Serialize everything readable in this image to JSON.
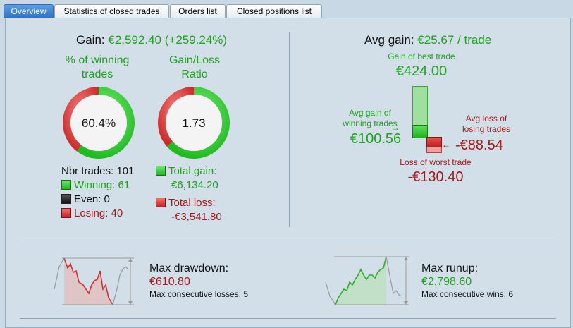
{
  "tabs": [
    "Overview",
    "Statistics of closed trades",
    "Orders list",
    "Closed positions list"
  ],
  "gain": {
    "label": "Gain:",
    "value": "€2,592.40 (+259.24%)"
  },
  "winning_pct": {
    "title_line1": "% of winning",
    "title_line2": "trades",
    "value": "60.4%",
    "fraction": 0.604
  },
  "gain_loss_ratio": {
    "title_line1": "Gain/Loss",
    "title_line2": "Ratio",
    "value": "1.73",
    "fraction": 0.634
  },
  "trades": {
    "count_label": "Nbr trades: 101",
    "winning": "Winning: 61",
    "even": "Even: 0",
    "losing": "Losing: 40"
  },
  "totals": {
    "gain_label": "Total gain:",
    "gain_value": "€6,134.20",
    "loss_label": "Total loss:",
    "loss_value": "-€3,541.80"
  },
  "avg": {
    "label": "Avg gain:",
    "value": "€25.67 / trade",
    "best_label": "Gain of best trade",
    "best_value": "€424.00",
    "avg_win_label_1": "Avg gain of",
    "avg_win_label_2": "winning trades",
    "avg_win_value": "€100.56",
    "avg_loss_label_1": "Avg loss of",
    "avg_loss_label_2": "losing trades",
    "avg_loss_value": "-€88.54",
    "worst_label": "Loss of worst trade",
    "worst_value": "-€130.40"
  },
  "drawdown": {
    "title": "Max drawdown:",
    "value": "€610.80",
    "sub": "Max consecutive losses: 5"
  },
  "runup": {
    "title": "Max runup:",
    "value": "€2,798.60",
    "sub": "Max consecutive wins: 6"
  },
  "colors": {
    "green": "#22a022",
    "red": "#a01b1b",
    "tab_active": "#2f74c6"
  }
}
